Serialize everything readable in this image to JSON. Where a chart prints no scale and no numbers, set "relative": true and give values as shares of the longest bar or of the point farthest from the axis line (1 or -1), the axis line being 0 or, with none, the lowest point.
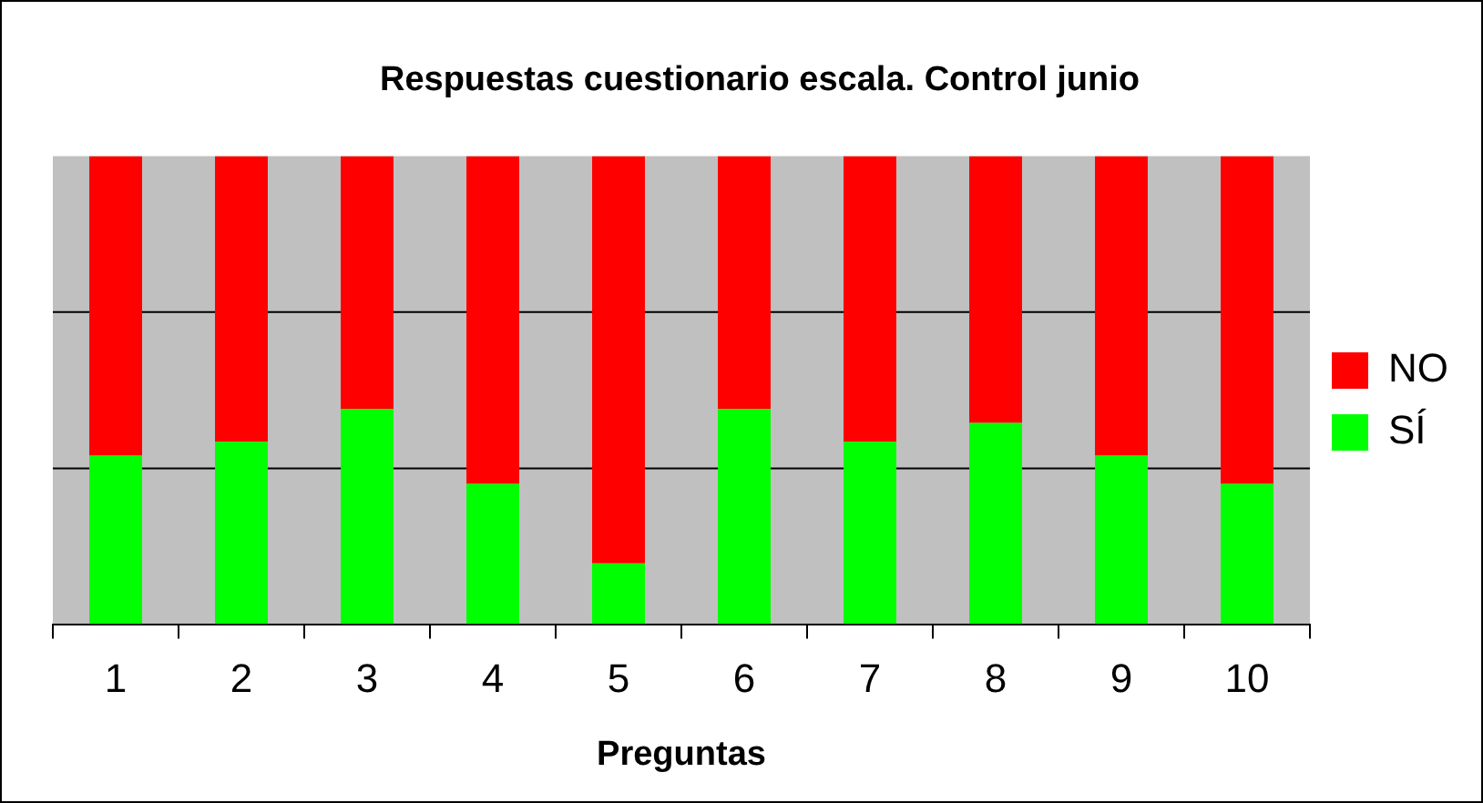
{
  "chart_data": {
    "type": "bar",
    "title": "Respuestas cuestionario escala. Control junio",
    "xlabel": "Preguntas",
    "categories": [
      "1",
      "2",
      "3",
      "4",
      "5",
      "6",
      "7",
      "8",
      "9",
      "10"
    ],
    "stacked": true,
    "relative": true,
    "legend": "right",
    "ref_lines": [
      {
        "axis": "y",
        "value": 0.333,
        "color": "#000000"
      },
      {
        "axis": "y",
        "value": 0.667,
        "color": "#000000"
      }
    ],
    "series": [
      {
        "name": "SÍ",
        "color": "#00ff00",
        "values": [
          0.36,
          0.39,
          0.46,
          0.3,
          0.13,
          0.46,
          0.39,
          0.43,
          0.36,
          0.3
        ]
      },
      {
        "name": "NO",
        "color": "#ff0000",
        "values": [
          0.64,
          0.61,
          0.54,
          0.7,
          0.87,
          0.54,
          0.61,
          0.57,
          0.64,
          0.7
        ]
      }
    ]
  }
}
